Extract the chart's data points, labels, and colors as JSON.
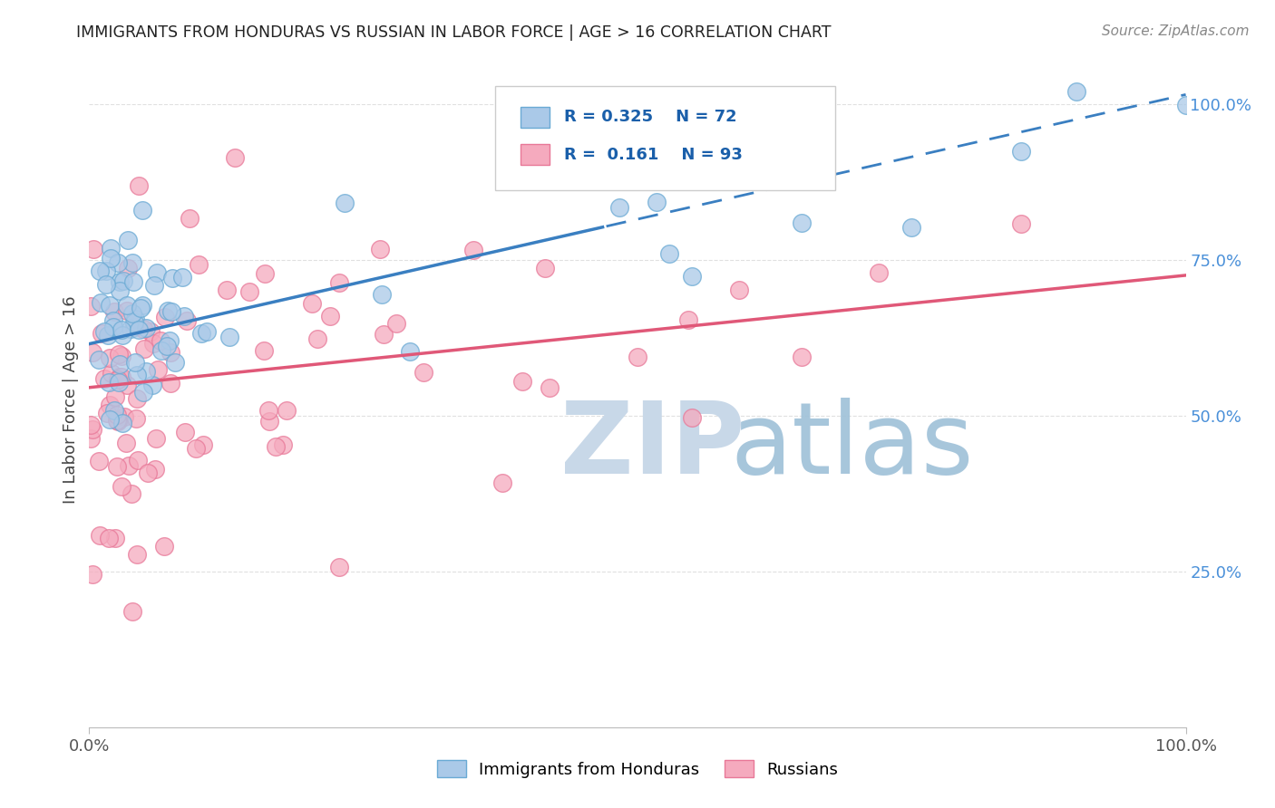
{
  "title": "IMMIGRANTS FROM HONDURAS VS RUSSIAN IN LABOR FORCE | AGE > 16 CORRELATION CHART",
  "source": "Source: ZipAtlas.com",
  "ylabel": "In Labor Force | Age > 16",
  "xlim": [
    0.0,
    1.0
  ],
  "ylim": [
    0.0,
    1.05
  ],
  "honduras_R": 0.325,
  "honduras_N": 72,
  "russian_R": 0.161,
  "russian_N": 93,
  "honduras_color": "#aac9e8",
  "russian_color": "#f5aabe",
  "honduras_edge_color": "#6aaad4",
  "russian_edge_color": "#e87898",
  "honduras_line_color": "#3a7fc1",
  "russian_line_color": "#e05878",
  "watermark_zip_color": "#c8d8e8",
  "watermark_atlas_color": "#9ec0d8",
  "background_color": "#ffffff",
  "grid_color": "#e0e0e0",
  "right_tick_color": "#4a90d9",
  "title_color": "#222222",
  "source_color": "#888888"
}
